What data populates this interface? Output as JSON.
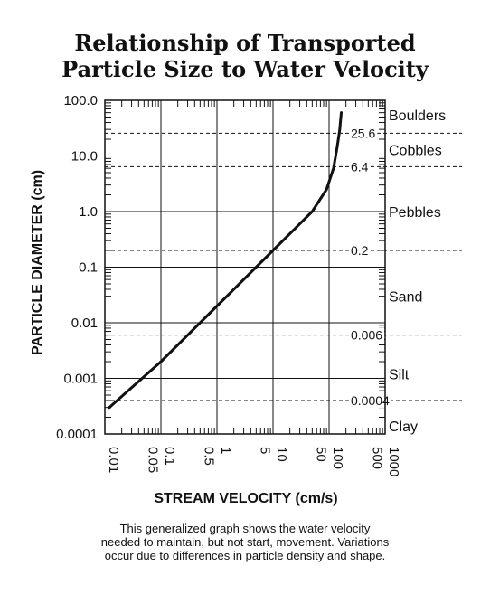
{
  "title_lines": [
    "Relationship of Transported",
    "Particle Size to Water Velocity"
  ],
  "caption_lines": [
    "This generalized graph shows the water velocity",
    "needed to maintain, but not start, movement. Variations",
    "occur due to differences in particle density and  shape."
  ],
  "chart_data": {
    "type": "line",
    "title": "Relationship of Transported Particle Size to Water Velocity",
    "xlabel": "STREAM VELOCITY (cm/s)",
    "ylabel": "PARTICLE DIAMETER (cm)",
    "x_scale": "log",
    "y_scale": "log",
    "xlim": [
      0.01,
      1000
    ],
    "ylim": [
      0.0001,
      100
    ],
    "grid": true,
    "x_tick_labels": [
      {
        "value": 0.01,
        "label": "0.01"
      },
      {
        "value": 0.05,
        "label": "0.05"
      },
      {
        "value": 0.1,
        "label": "0.1"
      },
      {
        "value": 0.5,
        "label": "0.5"
      },
      {
        "value": 1,
        "label": "1"
      },
      {
        "value": 5,
        "label": "5"
      },
      {
        "value": 10,
        "label": "10"
      },
      {
        "value": 50,
        "label": "50"
      },
      {
        "value": 100,
        "label": "100"
      },
      {
        "value": 500,
        "label": "500"
      },
      {
        "value": 1000,
        "label": "1000"
      }
    ],
    "y_tick_labels": [
      {
        "value": 100,
        "label": "100.0"
      },
      {
        "value": 10,
        "label": "10.0"
      },
      {
        "value": 1,
        "label": "1.0"
      },
      {
        "value": 0.1,
        "label": "0.1"
      },
      {
        "value": 0.01,
        "label": "0.01"
      },
      {
        "value": 0.001,
        "label": "0.001"
      },
      {
        "value": 0.0001,
        "label": "0.0001"
      }
    ],
    "series": [
      {
        "points": [
          {
            "x": 0.012,
            "y": 0.0003
          },
          {
            "x": 0.1,
            "y": 0.002
          },
          {
            "x": 1,
            "y": 0.02
          },
          {
            "x": 5,
            "y": 0.1
          },
          {
            "x": 10,
            "y": 0.2
          },
          {
            "x": 50,
            "y": 1.0
          },
          {
            "x": 90,
            "y": 2.5
          },
          {
            "x": 120,
            "y": 6.0
          },
          {
            "x": 140,
            "y": 15
          },
          {
            "x": 155,
            "y": 30
          },
          {
            "x": 165,
            "y": 60
          }
        ]
      }
    ],
    "thresholds": [
      {
        "value": 25.6,
        "label": "25.6"
      },
      {
        "value": 6.4,
        "label": "6.4"
      },
      {
        "value": 0.2,
        "label": "0.2"
      },
      {
        "value": 0.006,
        "label": "0.006"
      },
      {
        "value": 0.0004,
        "label": "0.0004"
      }
    ],
    "zones": [
      {
        "label": "Boulders",
        "y": 55
      },
      {
        "label": "Cobbles",
        "y": 13
      },
      {
        "label": "Pebbles",
        "y": 1.0
      },
      {
        "label": "Sand",
        "y": 0.03
      },
      {
        "label": "Silt",
        "y": 0.0012
      },
      {
        "label": "Clay",
        "y": 0.00014
      }
    ]
  }
}
